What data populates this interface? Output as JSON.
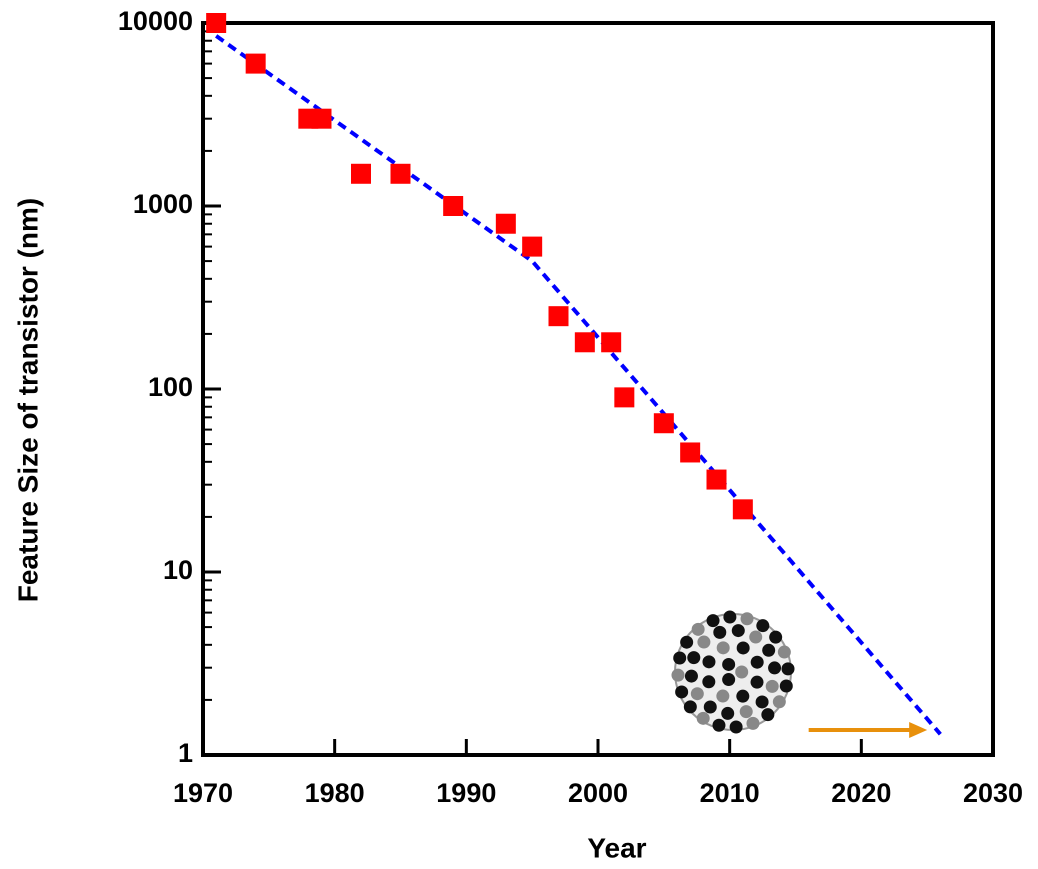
{
  "chart_data": {
    "type": "scatter",
    "x_label": "Year",
    "y_label": "Feature Size of transistor (nm)",
    "xlim": [
      1970,
      2030
    ],
    "xticks": [
      1970,
      1980,
      1990,
      2000,
      2010,
      2020,
      2030
    ],
    "ylim": [
      1,
      10000
    ],
    "yticks": [
      1,
      10,
      100,
      1000,
      10000
    ],
    "y_scale": "log",
    "series": [
      {
        "color": "#ff0000",
        "x": [
          1971,
          1974,
          1978,
          1979,
          1982,
          1985,
          1989,
          1993,
          1995,
          1997,
          1999,
          2001,
          2002,
          2005,
          2007,
          2009,
          2011
        ],
        "values": [
          10000,
          6000,
          3000,
          3000,
          1500,
          1500,
          1000,
          800,
          600,
          250,
          180,
          180,
          90,
          65,
          45,
          32,
          22
        ]
      }
    ],
    "trend_line": {
      "color": "#0000ff",
      "x": [
        1971,
        1995,
        2026
      ],
      "values": [
        8500,
        500,
        1.3
      ]
    },
    "arrow": {
      "color": "#e8900c",
      "x": [
        2016,
        2025
      ],
      "value": 1.37
    }
  }
}
